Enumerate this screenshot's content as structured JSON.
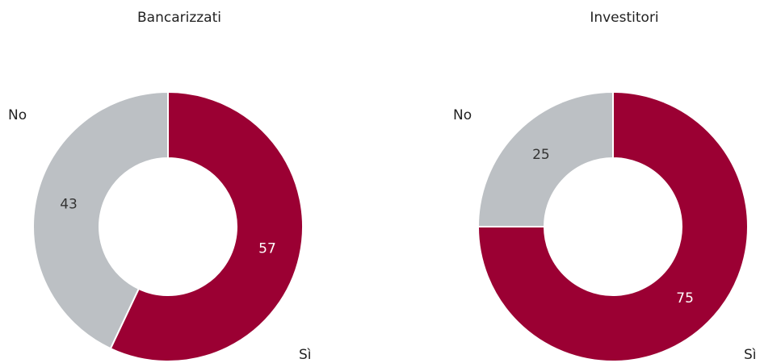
{
  "chart_data": [
    {
      "type": "donut",
      "title": "Bancarizzati",
      "categories": [
        "Sì",
        "No"
      ],
      "values": [
        57,
        43
      ],
      "colors": [
        "#9b0033",
        "#bcc0c4"
      ]
    },
    {
      "type": "donut",
      "title": "Investitori",
      "categories": [
        "Sì",
        "No"
      ],
      "values": [
        75,
        25
      ],
      "colors": [
        "#9b0033",
        "#bcc0c4"
      ]
    }
  ]
}
